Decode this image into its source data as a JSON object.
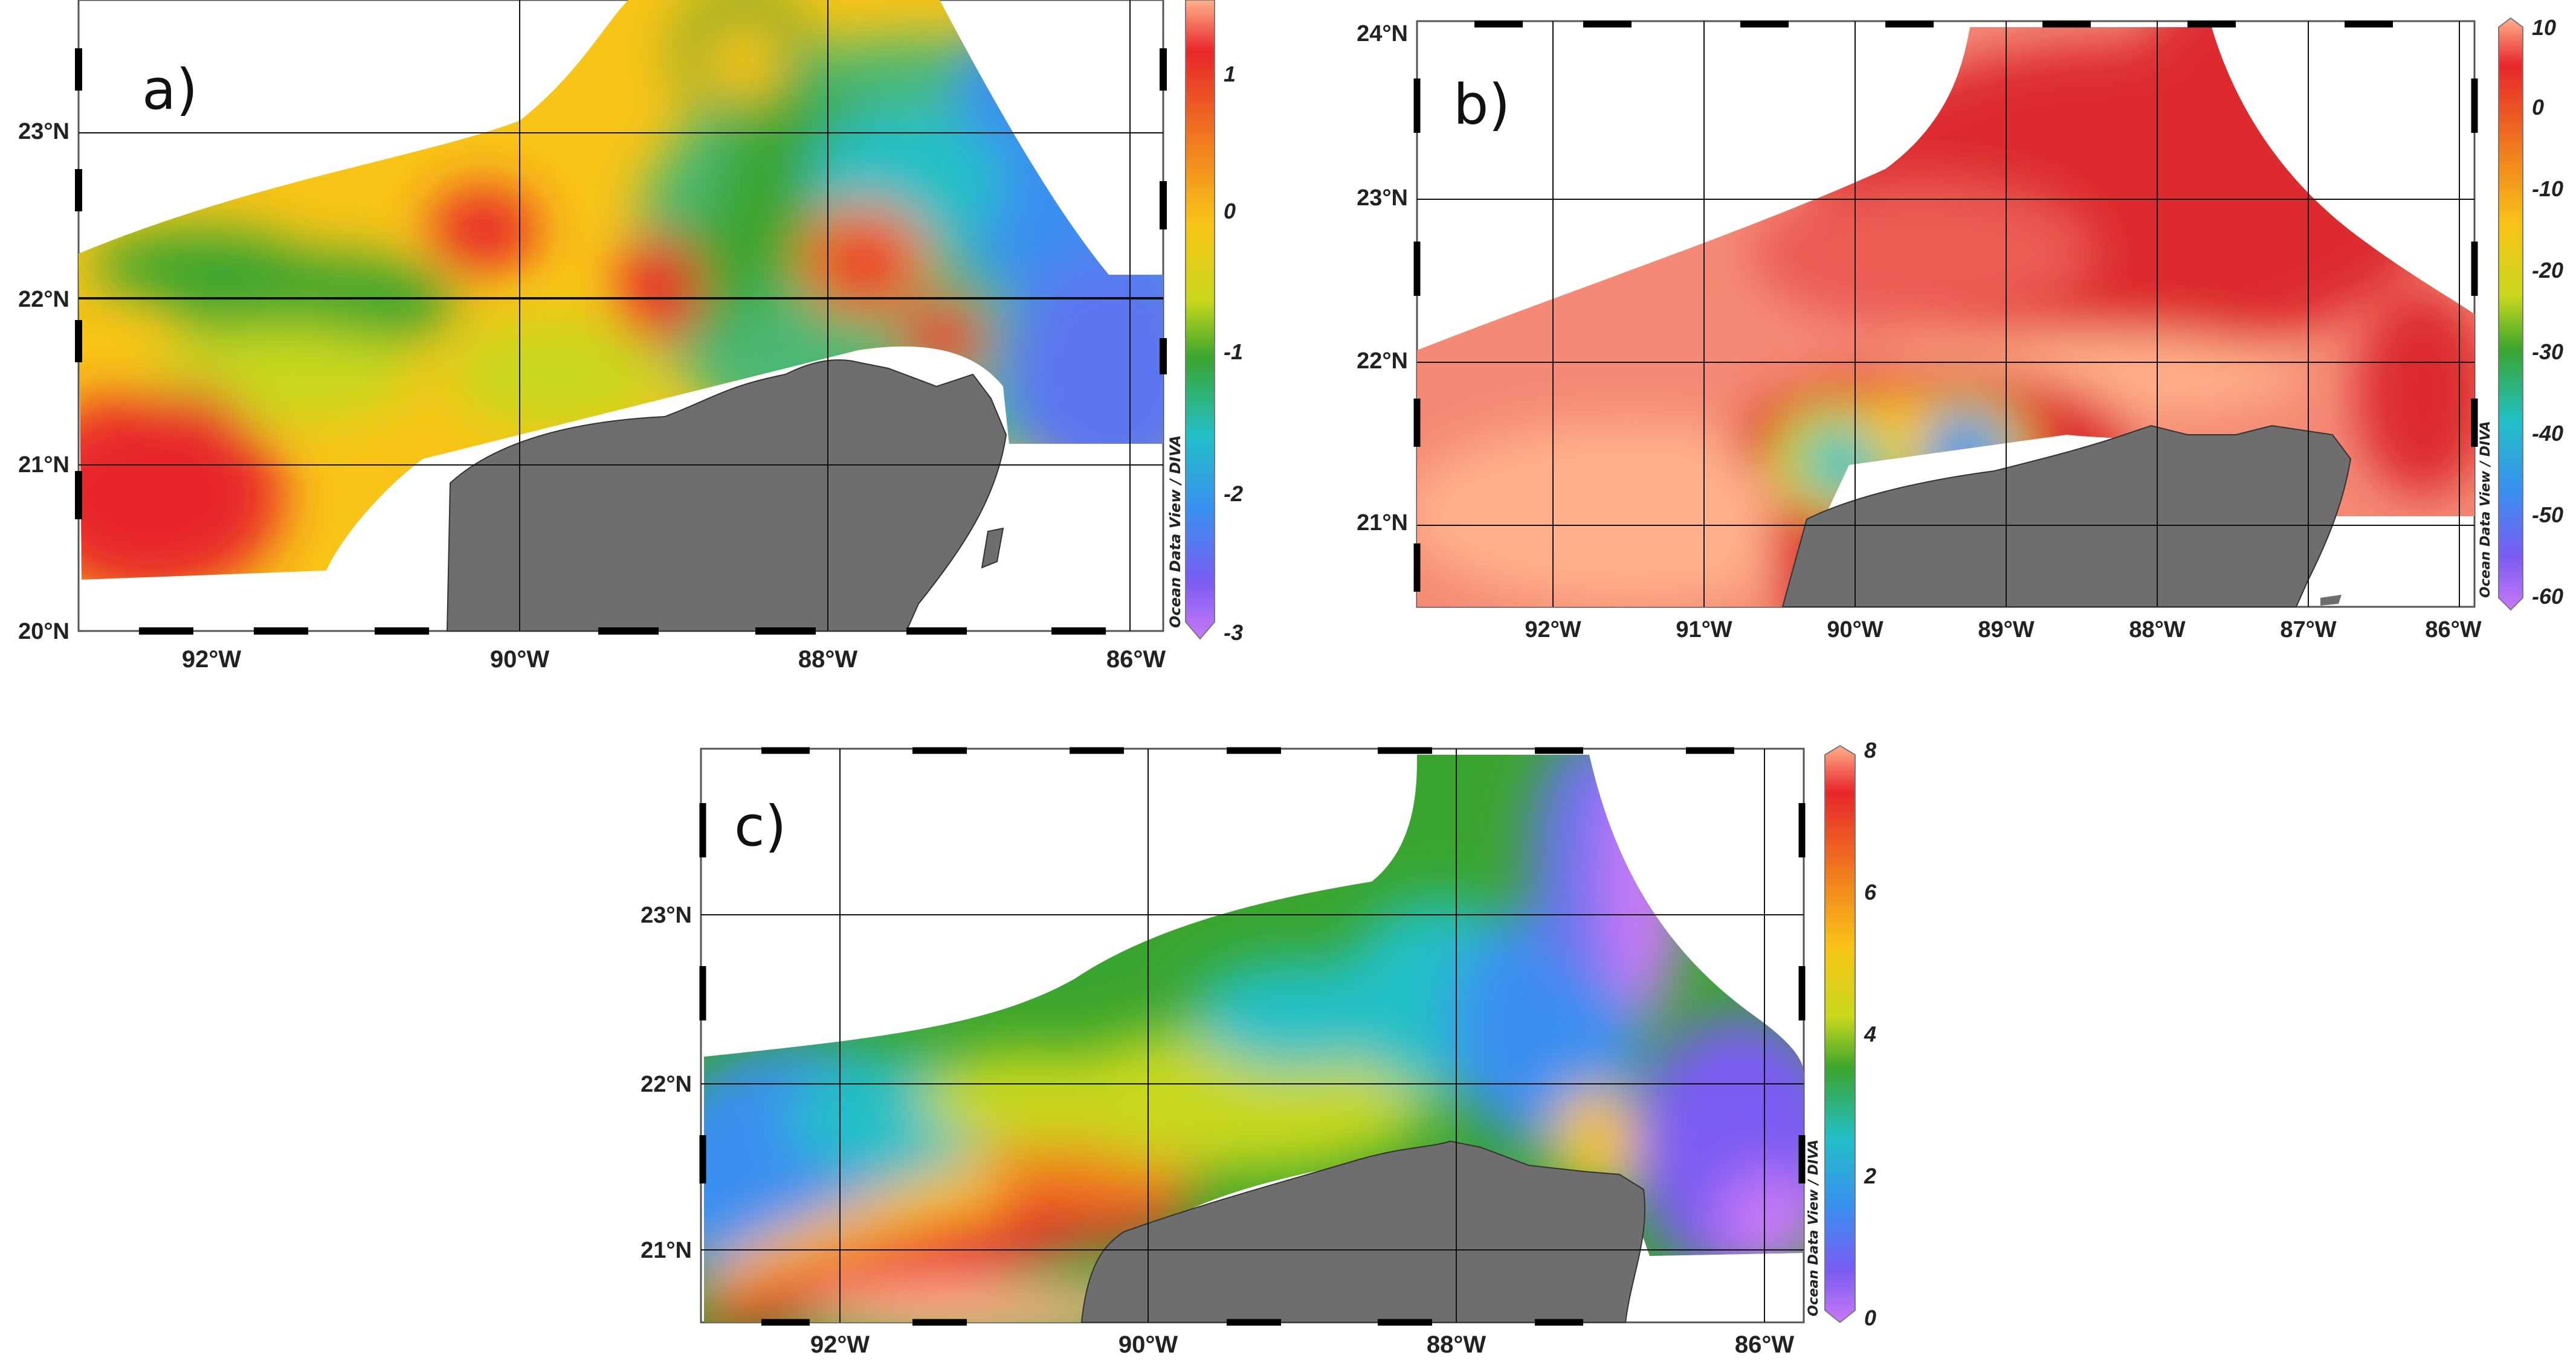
{
  "panels": [
    {
      "id": "a",
      "label": "a)",
      "lat_ticks": [
        "20°N",
        "21°N",
        "22°N",
        "23°N"
      ],
      "lon_ticks": [
        "92°W",
        "90°W",
        "88°W",
        "86°W"
      ],
      "colorbar": {
        "ticks": [
          "1",
          "0",
          "-1",
          "-2",
          "-3"
        ],
        "min": -3,
        "max": 1.5
      },
      "credit": "Ocean Data View / DIVA"
    },
    {
      "id": "b",
      "label": "b)",
      "lat_ticks": [
        "21°N",
        "22°N",
        "23°N",
        "24°N"
      ],
      "lon_ticks": [
        "92°W",
        "91°W",
        "90°W",
        "89°W",
        "88°W",
        "87°W",
        "86°W"
      ],
      "colorbar": {
        "ticks": [
          "10",
          "0",
          "-10",
          "-20",
          "-30",
          "-40",
          "-50",
          "-60"
        ],
        "min": -60,
        "max": 10
      },
      "credit": "Ocean Data View / DIVA"
    },
    {
      "id": "c",
      "label": "c)",
      "lat_ticks": [
        "21°N",
        "22°N",
        "23°N"
      ],
      "lon_ticks": [
        "92°W",
        "90°W",
        "88°W",
        "86°W"
      ],
      "colorbar": {
        "ticks": [
          "8",
          "6",
          "4",
          "2",
          "0"
        ],
        "min": 0,
        "max": 8
      },
      "credit": "Ocean Data View / DIVA"
    }
  ],
  "colors": {
    "land": "#6e6e6e",
    "palette": [
      "#ffb08a",
      "#e8262b",
      "#f07b1e",
      "#f8c417",
      "#c8d81c",
      "#3aa52e",
      "#21c0c6",
      "#3a8ff0",
      "#7a5cf2",
      "#c879f6"
    ]
  }
}
